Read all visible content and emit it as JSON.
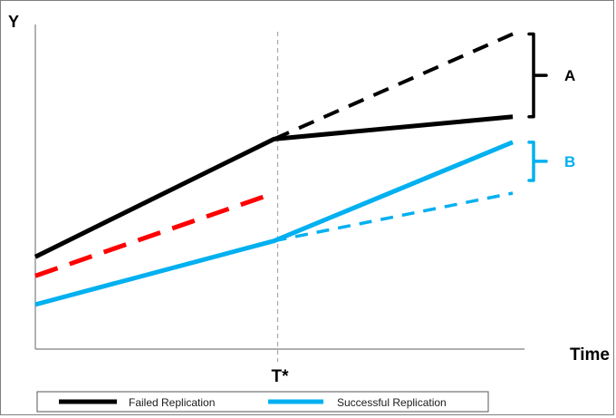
{
  "chart_data": {
    "type": "line",
    "xlabel": "Time",
    "ylabel": "Y",
    "xlim": [
      0,
      1
    ],
    "ylim": [
      0,
      1
    ],
    "x_marker": {
      "label": "T*",
      "x": 0.5
    },
    "series": [
      {
        "name": "Failed Replication",
        "color": "#000000",
        "style": "solid",
        "points": [
          [
            0,
            0.29
          ],
          [
            0.5,
            0.66
          ],
          [
            1,
            0.73
          ]
        ]
      },
      {
        "color": "#000000",
        "style": "dashed",
        "points": [
          [
            0.5,
            0.66
          ],
          [
            1,
            0.99
          ]
        ]
      },
      {
        "color": "#ff0000",
        "style": "dashed",
        "points": [
          [
            0,
            0.23
          ],
          [
            0.5,
            0.49
          ]
        ]
      },
      {
        "name": "Successful Replication",
        "color": "#00b0f0",
        "style": "solid",
        "points": [
          [
            0,
            0.14
          ],
          [
            0.5,
            0.34
          ],
          [
            1,
            0.65
          ]
        ]
      },
      {
        "color": "#00b0f0",
        "style": "dashed",
        "points": [
          [
            0.5,
            0.34
          ],
          [
            1,
            0.49
          ]
        ]
      }
    ],
    "annotations": [
      {
        "label": "A",
        "color": "#000000",
        "range": [
          0.73,
          0.99
        ]
      },
      {
        "label": "B",
        "color": "#00b0f0",
        "range": [
          0.53,
          0.65
        ]
      }
    ],
    "legend": {
      "placement": "bottom",
      "items": [
        {
          "label": "Failed Replication",
          "color": "#000000"
        },
        {
          "label": "Successful Replication",
          "color": "#00b0f0"
        }
      ]
    }
  }
}
